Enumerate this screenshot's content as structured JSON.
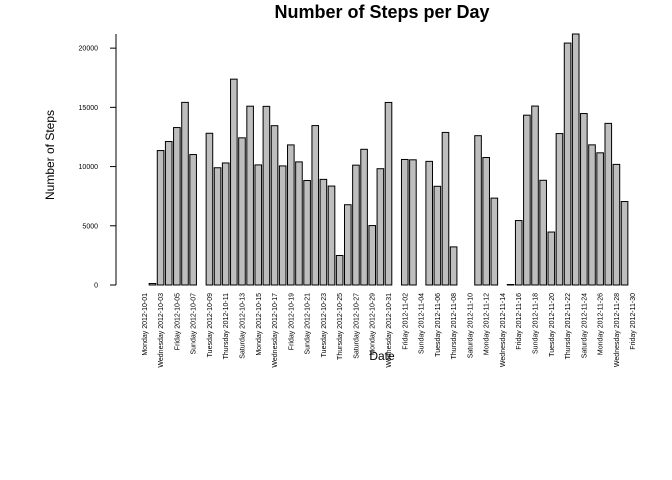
{
  "chart_data": {
    "type": "bar",
    "title": "Number of Steps per Day",
    "xlabel": "Date",
    "ylabel": "Number of Steps",
    "ylim": [
      0,
      21194
    ],
    "yticks": [
      0,
      5000,
      10000,
      15000,
      20000
    ],
    "ytick_labels": [
      "0",
      "5000",
      "10000",
      "15000",
      "20000"
    ],
    "categories": [
      "2012-10-01",
      "2012-10-02",
      "2012-10-03",
      "2012-10-04",
      "2012-10-05",
      "2012-10-06",
      "2012-10-07",
      "2012-10-08",
      "2012-10-09",
      "2012-10-10",
      "2012-10-11",
      "2012-10-12",
      "2012-10-13",
      "2012-10-14",
      "2012-10-15",
      "2012-10-16",
      "2012-10-17",
      "2012-10-18",
      "2012-10-19",
      "2012-10-20",
      "2012-10-21",
      "2012-10-22",
      "2012-10-23",
      "2012-10-24",
      "2012-10-25",
      "2012-10-26",
      "2012-10-27",
      "2012-10-28",
      "2012-10-29",
      "2012-10-30",
      "2012-10-31",
      "2012-11-01",
      "2012-11-02",
      "2012-11-03",
      "2012-11-04",
      "2012-11-05",
      "2012-11-06",
      "2012-11-07",
      "2012-11-08",
      "2012-11-09",
      "2012-11-10",
      "2012-11-11",
      "2012-11-12",
      "2012-11-13",
      "2012-11-14",
      "2012-11-15",
      "2012-11-16",
      "2012-11-17",
      "2012-11-18",
      "2012-11-19",
      "2012-11-20",
      "2012-11-21",
      "2012-11-22",
      "2012-11-23",
      "2012-11-24",
      "2012-11-25",
      "2012-11-26",
      "2012-11-27",
      "2012-11-28",
      "2012-11-29",
      "2012-11-30"
    ],
    "values": [
      0,
      126,
      11352,
      12116,
      13294,
      15420,
      11015,
      0,
      12811,
      9900,
      10304,
      17382,
      12426,
      15098,
      10139,
      15084,
      13452,
      10056,
      11829,
      10395,
      8821,
      13460,
      8918,
      8355,
      2492,
      6778,
      10119,
      11458,
      5018,
      9819,
      15414,
      0,
      10600,
      10571,
      0,
      10439,
      8334,
      12883,
      3219,
      0,
      0,
      12608,
      10765,
      7336,
      0,
      41,
      5441,
      14339,
      15110,
      8841,
      4472,
      12787,
      20427,
      21194,
      14478,
      11834,
      11162,
      13646,
      10183,
      7047,
      0
    ],
    "tick_labels": [
      "Monday 2012-10-01",
      "Wednesday 2012-10-03",
      "Friday 2012-10-05",
      "Sunday 2012-10-07",
      "Tuesday 2012-10-09",
      "Thursday 2012-10-11",
      "Saturday 2012-10-13",
      "Monday 2012-10-15",
      "Wednesday 2012-10-17",
      "Friday 2012-10-19",
      "Sunday 2012-10-21",
      "Tuesday 2012-10-23",
      "Thursday 2012-10-25",
      "Saturday 2012-10-27",
      "Monday 2012-10-29",
      "Wednesday 2012-10-31",
      "Friday 2012-11-02",
      "Sunday 2012-11-04",
      "Tuesday 2012-11-06",
      "Thursday 2012-11-08",
      "Saturday 2012-11-10",
      "Monday 2012-11-12",
      "Wednesday 2012-11-14",
      "Friday 2012-11-16",
      "Sunday 2012-11-18",
      "Tuesday 2012-11-20",
      "Thursday 2012-11-22",
      "Saturday 2012-11-24",
      "Monday 2012-11-26",
      "Wednesday 2012-11-28",
      "Friday 2012-11-30"
    ],
    "bar_color": "#bebebe",
    "bar_border_color": "#000000",
    "grid": false,
    "legend": "none"
  }
}
